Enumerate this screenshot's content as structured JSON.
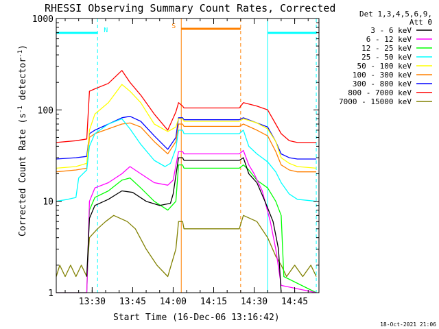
{
  "chart_data": {
    "type": "line",
    "title": "RHESSI Observing Summary Count Rates, Corrected",
    "xlabel": "Start Time (16-Dec-06 13:16:42)",
    "ylabel_main": "Corrected Count Rate (s",
    "ylabel_sup1": "-1",
    "ylabel_mid": " detector",
    "ylabel_sup2": "-1",
    "ylabel_end": ")",
    "yscale": "log",
    "ylim": [
      1,
      1000
    ],
    "xlim": [
      "13:16:42",
      "14:54:00"
    ],
    "x_ticks": [
      "13:30",
      "13:45",
      "14:00",
      "14:15",
      "14:30",
      "14:45"
    ],
    "y_ticks": [
      "1",
      "10",
      "100",
      "1000"
    ],
    "grid": false,
    "legend_title": [
      "Det 1,3,4,5,6,9,",
      "Att 0"
    ],
    "legend_position": "right",
    "footer": "18-Oct-2021 21:06",
    "flags": [
      {
        "label": "N",
        "color": "#00ffff",
        "segments": [
          [
            "13:16:42",
            "13:32:00"
          ],
          [
            "14:35:00",
            "14:53:00"
          ]
        ],
        "marks": [
          "13:32:00",
          "14:35:00",
          "14:53:00"
        ]
      },
      {
        "label": "S",
        "color": "#ff8000",
        "segments": [
          [
            "14:03:00",
            "14:25:00"
          ]
        ],
        "marks": [
          "14:03:00",
          "14:25:00"
        ]
      }
    ],
    "series": [
      {
        "name": "3 - 6 keV",
        "color": "#000000",
        "points": [
          [
            "13:28:00",
            1.5
          ],
          [
            "13:29:00",
            6.5
          ],
          [
            "13:31:00",
            9
          ],
          [
            "13:36:00",
            10.5
          ],
          [
            "13:41:00",
            13
          ],
          [
            "13:45:00",
            12.5
          ],
          [
            "13:50:00",
            10
          ],
          [
            "13:55:00",
            9
          ],
          [
            "13:59:00",
            9.5
          ],
          [
            "14:00:00",
            12
          ],
          [
            "14:02:00",
            30
          ],
          [
            "14:03:30",
            30
          ],
          [
            "14:04:00",
            28
          ],
          [
            "14:24:30",
            28
          ],
          [
            "14:26:00",
            30
          ],
          [
            "14:28:00",
            20
          ],
          [
            "14:31:00",
            16
          ],
          [
            "14:34:00",
            10
          ],
          [
            "14:37:00",
            6
          ],
          [
            "14:39:00",
            3
          ],
          [
            "14:40:00",
            1
          ]
        ]
      },
      {
        "name": "6 - 12 keV",
        "color": "#ff00ff",
        "points": [
          [
            "13:16:42",
            1
          ],
          [
            "13:28:00",
            1
          ],
          [
            "13:29:00",
            10
          ],
          [
            "13:31:00",
            14
          ],
          [
            "13:36:00",
            16
          ],
          [
            "13:41:00",
            20
          ],
          [
            "13:44:00",
            24
          ],
          [
            "13:48:00",
            20
          ],
          [
            "13:53:00",
            16
          ],
          [
            "13:58:00",
            15
          ],
          [
            "14:00:00",
            17
          ],
          [
            "14:02:00",
            35
          ],
          [
            "14:03:30",
            35
          ],
          [
            "14:04:00",
            33
          ],
          [
            "14:24:30",
            33
          ],
          [
            "14:26:00",
            36
          ],
          [
            "14:28:00",
            25
          ],
          [
            "14:30:00",
            20
          ],
          [
            "14:33:00",
            13
          ],
          [
            "14:36:00",
            6
          ],
          [
            "14:38:00",
            3
          ],
          [
            "14:40:00",
            1.2
          ],
          [
            "14:53:00",
            1
          ]
        ]
      },
      {
        "name": "12 - 25 keV",
        "color": "#00ff00",
        "points": [
          [
            "13:16:42",
            1
          ],
          [
            "13:28:00",
            1
          ],
          [
            "13:29:00",
            8
          ],
          [
            "13:31:00",
            11
          ],
          [
            "13:36:00",
            13
          ],
          [
            "13:41:00",
            17
          ],
          [
            "13:44:00",
            18
          ],
          [
            "13:48:00",
            14
          ],
          [
            "13:53:00",
            10
          ],
          [
            "13:58:00",
            8
          ],
          [
            "14:01:00",
            10
          ],
          [
            "14:02:00",
            25
          ],
          [
            "14:03:30",
            25
          ],
          [
            "14:04:00",
            23
          ],
          [
            "14:24:30",
            23
          ],
          [
            "14:26:00",
            25
          ],
          [
            "14:28:00",
            22
          ],
          [
            "14:31:00",
            17
          ],
          [
            "14:35:00",
            14
          ],
          [
            "14:38:00",
            10
          ],
          [
            "14:40:00",
            7
          ],
          [
            "14:41:00",
            1.5
          ],
          [
            "14:53:00",
            1
          ]
        ]
      },
      {
        "name": "25 - 50 keV",
        "color": "#00ffff",
        "points": [
          [
            "13:16:42",
            10
          ],
          [
            "13:21:00",
            10.5
          ],
          [
            "13:24:00",
            11
          ],
          [
            "13:25:00",
            18
          ],
          [
            "13:28:00",
            22
          ],
          [
            "13:29:00",
            40
          ],
          [
            "13:31:00",
            55
          ],
          [
            "13:36:00",
            70
          ],
          [
            "13:41:00",
            80
          ],
          [
            "13:44:00",
            62
          ],
          [
            "13:48:00",
            42
          ],
          [
            "13:53:00",
            28
          ],
          [
            "13:57:00",
            24
          ],
          [
            "13:59:00",
            26
          ],
          [
            "14:01:00",
            38
          ],
          [
            "14:02:00",
            60
          ],
          [
            "14:03:30",
            60
          ],
          [
            "14:04:00",
            55
          ],
          [
            "14:24:30",
            55
          ],
          [
            "14:26:00",
            60
          ],
          [
            "14:28:00",
            40
          ],
          [
            "14:31:00",
            33
          ],
          [
            "14:35:00",
            27
          ],
          [
            "14:38:00",
            21
          ],
          [
            "14:40:00",
            16
          ],
          [
            "14:43:00",
            12
          ],
          [
            "14:46:00",
            10.5
          ],
          [
            "14:53:00",
            10
          ]
        ]
      },
      {
        "name": "50 - 100 keV",
        "color": "#ffff00",
        "points": [
          [
            "13:16:42",
            23
          ],
          [
            "13:24:00",
            24
          ],
          [
            "13:28:00",
            26
          ],
          [
            "13:29:00",
            60
          ],
          [
            "13:31:00",
            90
          ],
          [
            "13:36:00",
            120
          ],
          [
            "13:41:00",
            190
          ],
          [
            "13:44:00",
            160
          ],
          [
            "13:48:00",
            120
          ],
          [
            "13:53:00",
            70
          ],
          [
            "13:58:00",
            58
          ],
          [
            "14:01:00",
            65
          ],
          [
            "14:02:00",
            80
          ],
          [
            "14:03:30",
            80
          ],
          [
            "14:04:00",
            75
          ],
          [
            "14:24:30",
            75
          ],
          [
            "14:26:00",
            80
          ],
          [
            "14:31:00",
            72
          ],
          [
            "14:35:00",
            62
          ],
          [
            "14:38:00",
            45
          ],
          [
            "14:40:00",
            30
          ],
          [
            "14:43:00",
            26
          ],
          [
            "14:46:00",
            24
          ],
          [
            "14:53:00",
            23
          ]
        ]
      },
      {
        "name": "100 - 300 keV",
        "color": "#ff8000",
        "points": [
          [
            "13:16:42",
            21
          ],
          [
            "13:24:00",
            22
          ],
          [
            "13:28:00",
            23
          ],
          [
            "13:29:00",
            50
          ],
          [
            "13:31:00",
            55
          ],
          [
            "13:36:00",
            62
          ],
          [
            "13:41:00",
            70
          ],
          [
            "13:44:00",
            72
          ],
          [
            "13:48:00",
            65
          ],
          [
            "13:53:00",
            45
          ],
          [
            "13:58:00",
            33
          ],
          [
            "14:01:00",
            45
          ],
          [
            "14:02:00",
            70
          ],
          [
            "14:03:30",
            70
          ],
          [
            "14:04:00",
            66
          ],
          [
            "14:24:30",
            66
          ],
          [
            "14:26:00",
            70
          ],
          [
            "14:31:00",
            60
          ],
          [
            "14:35:00",
            52
          ],
          [
            "14:38:00",
            35
          ],
          [
            "14:40:00",
            25
          ],
          [
            "14:43:00",
            22
          ],
          [
            "14:46:00",
            21
          ],
          [
            "14:53:00",
            21
          ]
        ]
      },
      {
        "name": "300 - 800 keV",
        "color": "#0000ff",
        "points": [
          [
            "13:16:42",
            29
          ],
          [
            "13:24:00",
            30
          ],
          [
            "13:28:00",
            31
          ],
          [
            "13:29:00",
            55
          ],
          [
            "13:31:00",
            60
          ],
          [
            "13:36:00",
            70
          ],
          [
            "13:41:00",
            82
          ],
          [
            "13:44:00",
            85
          ],
          [
            "13:48:00",
            75
          ],
          [
            "13:53:00",
            52
          ],
          [
            "13:58:00",
            37
          ],
          [
            "14:01:00",
            50
          ],
          [
            "14:02:00",
            82
          ],
          [
            "14:03:30",
            82
          ],
          [
            "14:04:00",
            78
          ],
          [
            "14:24:30",
            78
          ],
          [
            "14:26:00",
            82
          ],
          [
            "14:31:00",
            72
          ],
          [
            "14:35:00",
            65
          ],
          [
            "14:38:00",
            45
          ],
          [
            "14:40:00",
            33
          ],
          [
            "14:43:00",
            30
          ],
          [
            "14:46:00",
            29
          ],
          [
            "14:53:00",
            29
          ]
        ]
      },
      {
        "name": "800 - 7000 keV",
        "color": "#ff0000",
        "points": [
          [
            "13:16:42",
            44
          ],
          [
            "13:24:00",
            46
          ],
          [
            "13:28:00",
            48
          ],
          [
            "13:29:00",
            160
          ],
          [
            "13:31:00",
            170
          ],
          [
            "13:36:00",
            195
          ],
          [
            "13:41:00",
            270
          ],
          [
            "13:44:00",
            200
          ],
          [
            "13:48:00",
            145
          ],
          [
            "13:53:00",
            90
          ],
          [
            "13:58:00",
            60
          ],
          [
            "14:01:00",
            95
          ],
          [
            "14:02:00",
            120
          ],
          [
            "14:03:30",
            110
          ],
          [
            "14:04:00",
            105
          ],
          [
            "14:24:30",
            105
          ],
          [
            "14:26:00",
            120
          ],
          [
            "14:31:00",
            110
          ],
          [
            "14:35:00",
            100
          ],
          [
            "14:38:00",
            70
          ],
          [
            "14:40:00",
            55
          ],
          [
            "14:43:00",
            46
          ],
          [
            "14:46:00",
            44
          ],
          [
            "14:53:00",
            44
          ]
        ]
      },
      {
        "name": "7000 - 15000 keV",
        "color": "#808000",
        "points": [
          [
            "13:16:42",
            1.5
          ],
          [
            "13:18:00",
            2
          ],
          [
            "13:20:00",
            1.5
          ],
          [
            "13:22:00",
            2
          ],
          [
            "13:24:00",
            1.5
          ],
          [
            "13:26:00",
            2
          ],
          [
            "13:28:00",
            1.5
          ],
          [
            "13:29:00",
            4
          ],
          [
            "13:32:00",
            5
          ],
          [
            "13:35:00",
            6
          ],
          [
            "13:38:00",
            7
          ],
          [
            "13:43:00",
            6
          ],
          [
            "13:46:00",
            5
          ],
          [
            "13:50:00",
            3
          ],
          [
            "13:54:00",
            2
          ],
          [
            "13:58:00",
            1.5
          ],
          [
            "14:01:00",
            3
          ],
          [
            "14:02:00",
            6
          ],
          [
            "14:03:30",
            6
          ],
          [
            "14:04:00",
            5
          ],
          [
            "14:24:30",
            5
          ],
          [
            "14:26:00",
            7
          ],
          [
            "14:31:00",
            6
          ],
          [
            "14:35:00",
            4
          ],
          [
            "14:38:00",
            2.5
          ],
          [
            "14:40:00",
            2
          ],
          [
            "14:42:00",
            1.5
          ],
          [
            "14:45:00",
            2
          ],
          [
            "14:48:00",
            1.5
          ],
          [
            "14:51:00",
            2
          ],
          [
            "14:53:00",
            1.5
          ]
        ]
      }
    ]
  }
}
